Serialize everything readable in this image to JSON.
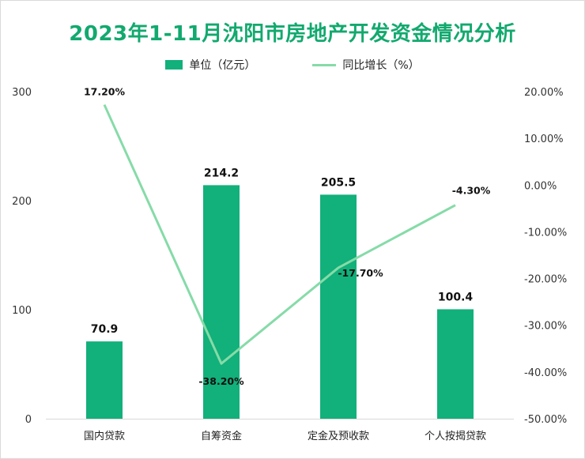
{
  "chart_data": {
    "type": "bar+line",
    "title": "2023年1-11月沈阳市房地产开发资金情况分析",
    "categories": [
      "国内贷款",
      "自筹资金",
      "定金及预收款",
      "个人按揭贷款"
    ],
    "series": [
      {
        "name": "单位（亿元）",
        "type": "bar",
        "axis": "left",
        "values": [
          70.9,
          214.2,
          205.5,
          100.4
        ],
        "labels": [
          "70.9",
          "214.2",
          "205.5",
          "100.4"
        ],
        "color": "#12b07a"
      },
      {
        "name": "同比增长（%）",
        "type": "line",
        "axis": "right",
        "values": [
          17.2,
          -38.2,
          -17.7,
          -4.3
        ],
        "labels": [
          "17.20%",
          "-38.20%",
          "-17.70%",
          "-4.30%"
        ],
        "color": "#86dba8"
      }
    ],
    "y_left": {
      "min": 0,
      "max": 300,
      "ticks": [
        "0",
        "100",
        "200",
        "300"
      ]
    },
    "y_right": {
      "min": -50,
      "max": 20,
      "ticks": [
        "-50.00%",
        "-40.00%",
        "-30.00%",
        "-20.00%",
        "-10.00%",
        "0.00%",
        "10.00%",
        "20.00%"
      ]
    },
    "legend_position": "top",
    "grid": false
  }
}
